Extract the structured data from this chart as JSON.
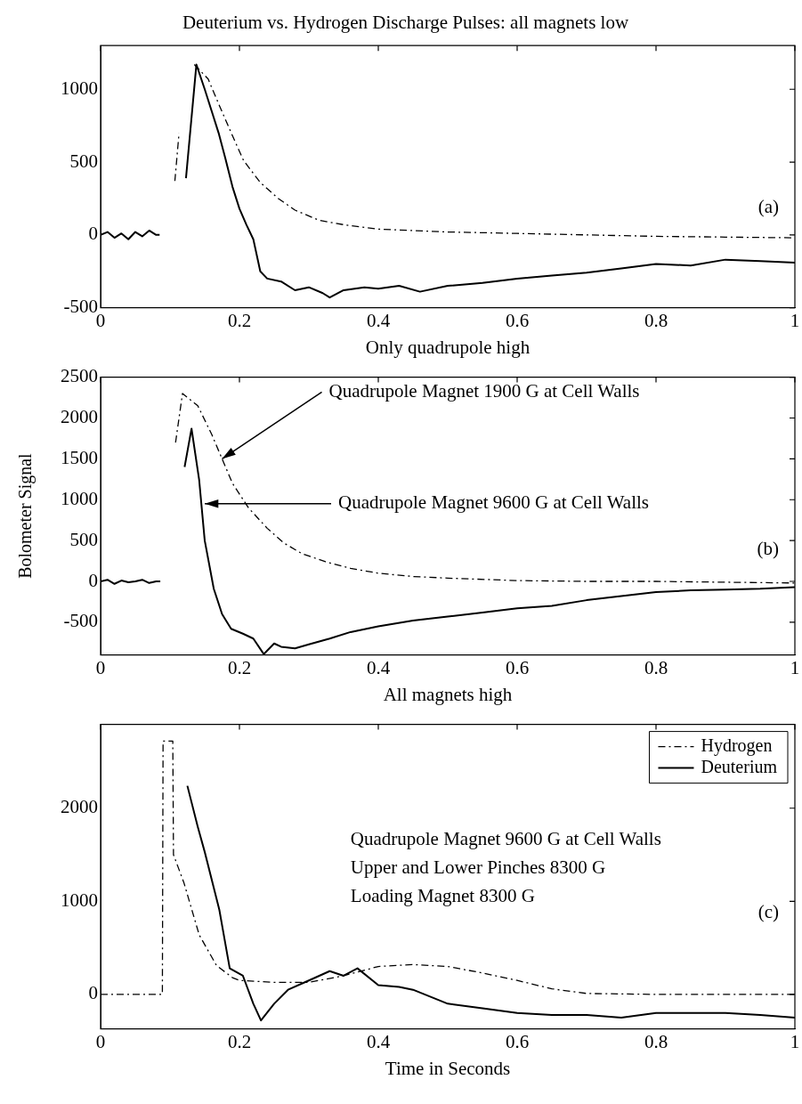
{
  "chart_data": [
    {
      "type": "line",
      "title": "Deuterium vs. Hydrogen Discharge Pulses: all magnets low",
      "xlabel": "Only quadrupole high",
      "xlim": [
        0,
        1
      ],
      "xticks": [
        0,
        0.2,
        0.4,
        0.6,
        0.8,
        1
      ],
      "ylim": [
        -500,
        1300
      ],
      "yticks": [
        -500,
        0,
        500,
        1000
      ],
      "grid": false,
      "marker": "none",
      "annotations": [
        "(a)"
      ],
      "series": [
        {
          "color": "#000000",
          "line_style": "dashed",
          "x": [
            0.107,
            0.113,
            0.118,
            0.135,
            0.155,
            0.17,
            0.19,
            0.206,
            0.23,
            0.256,
            0.28,
            0.315,
            0.35,
            0.4,
            0.45,
            0.5,
            0.6,
            0.7,
            0.8,
            0.9,
            1
          ],
          "values": [
            370,
            700,
            null,
            1170,
            1070,
            900,
            680,
            510,
            360,
            250,
            170,
            100,
            70,
            40,
            30,
            20,
            10,
            0,
            -10,
            -15,
            -20
          ]
        },
        {
          "color": "#000000",
          "line_style": "solid",
          "x": [
            0,
            0.01,
            0.02,
            0.03,
            0.04,
            0.05,
            0.06,
            0.07,
            0.08,
            0.085,
            0.086,
            0.12,
            0.123,
            0.138,
            0.15,
            0.16,
            0.17,
            0.18,
            0.19,
            0.2,
            0.21,
            0.22,
            0.23,
            0.24,
            0.26,
            0.28,
            0.3,
            0.32,
            0.33,
            0.35,
            0.38,
            0.4,
            0.43,
            0.46,
            0.5,
            0.55,
            0.6,
            0.65,
            0.7,
            0.75,
            0.8,
            0.85,
            0.9,
            0.95,
            1
          ],
          "values": [
            0,
            20,
            -20,
            10,
            -30,
            20,
            -10,
            30,
            0,
            0,
            null,
            null,
            390,
            1170,
            1000,
            850,
            700,
            520,
            330,
            180,
            70,
            -30,
            -250,
            -300,
            -320,
            -380,
            -360,
            -400,
            -430,
            -380,
            -360,
            -370,
            -350,
            -390,
            -350,
            -330,
            -300,
            -280,
            -260,
            -230,
            -200,
            -210,
            -170,
            -180,
            -190
          ]
        }
      ]
    },
    {
      "type": "line",
      "xlabel": "All magnets high",
      "ylabel": "Bolometer Signal",
      "xlim": [
        0,
        1
      ],
      "xticks": [
        0,
        0.2,
        0.4,
        0.6,
        0.8,
        1
      ],
      "ylim": [
        -900,
        2500
      ],
      "yticks": [
        -500,
        0,
        500,
        1000,
        1500,
        2000,
        2500
      ],
      "grid": false,
      "marker": "none",
      "annotations": [
        {
          "text": "Quadrupole Magnet 1900 G at Cell Walls",
          "x": 0.175,
          "y": 1500
        },
        {
          "text": "Quadrupole Magnet 9600 G at Cell Walls",
          "x": 0.15,
          "y": 950
        },
        "(b)"
      ],
      "series": [
        {
          "color": "#000000",
          "line_style": "dashed",
          "x": [
            0.108,
            0.118,
            0.14,
            0.16,
            0.175,
            0.19,
            0.213,
            0.24,
            0.264,
            0.29,
            0.324,
            0.36,
            0.4,
            0.45,
            0.5,
            0.6,
            0.7,
            0.8,
            0.9,
            1
          ],
          "values": [
            1700,
            2300,
            2150,
            1800,
            1500,
            1200,
            900,
            650,
            470,
            340,
            240,
            160,
            100,
            60,
            40,
            10,
            0,
            0,
            -10,
            -20
          ]
        },
        {
          "color": "#000000",
          "line_style": "solid",
          "x": [
            0,
            0.01,
            0.02,
            0.03,
            0.04,
            0.05,
            0.06,
            0.07,
            0.08,
            0.086,
            0.087,
            0.12,
            0.121,
            0.131,
            0.142,
            0.15,
            0.163,
            0.175,
            0.188,
            0.205,
            0.22,
            0.235,
            0.25,
            0.26,
            0.28,
            0.3,
            0.33,
            0.36,
            0.4,
            0.45,
            0.5,
            0.55,
            0.6,
            0.65,
            0.7,
            0.75,
            0.8,
            0.85,
            0.9,
            0.95,
            1
          ],
          "values": [
            0,
            20,
            -30,
            10,
            -10,
            0,
            20,
            -20,
            0,
            0,
            null,
            null,
            1400,
            1870,
            1240,
            500,
            -90,
            -400,
            -580,
            -640,
            -700,
            -890,
            -760,
            -800,
            -820,
            -770,
            -700,
            -620,
            -550,
            -480,
            -430,
            -380,
            -330,
            -300,
            -230,
            -180,
            -130,
            -110,
            -100,
            -90,
            -70
          ]
        }
      ]
    },
    {
      "type": "line",
      "xlabel": "Time in Seconds",
      "xlim": [
        0,
        1
      ],
      "xticks": [
        0,
        0.2,
        0.4,
        0.6,
        0.8,
        1
      ],
      "ylim": [
        -370,
        2900
      ],
      "yticks": [
        0,
        1000,
        2000
      ],
      "grid": false,
      "marker": "none",
      "legend": "top right",
      "annotations": [
        "Quadrupole Magnet 9600 G at Cell Walls",
        "Upper and Lower Pinches 8300 G",
        "Loading Magnet 8300 G",
        "(c)"
      ],
      "series": [
        {
          "name": "Hydrogen",
          "color": "#000000",
          "line_style": "dashed",
          "x": [
            0,
            0.089,
            0.09,
            0.104,
            0.105,
            0.12,
            0.142,
            0.167,
            0.19,
            0.2,
            0.25,
            0.3,
            0.35,
            0.4,
            0.45,
            0.5,
            0.55,
            0.6,
            0.65,
            0.7,
            0.8,
            0.9,
            1
          ],
          "values": [
            0,
            0,
            2720,
            2720,
            1500,
            1200,
            640,
            310,
            180,
            150,
            130,
            130,
            200,
            300,
            320,
            300,
            230,
            150,
            60,
            10,
            0,
            0,
            0
          ]
        },
        {
          "name": "Deuterium",
          "color": "#000000",
          "line_style": "solid",
          "x": [
            0.125,
            0.14,
            0.15,
            0.171,
            0.186,
            0.205,
            0.22,
            0.231,
            0.25,
            0.27,
            0.3,
            0.33,
            0.35,
            0.37,
            0.4,
            0.43,
            0.45,
            0.5,
            0.55,
            0.6,
            0.65,
            0.7,
            0.75,
            0.8,
            0.85,
            0.9,
            0.95,
            1
          ],
          "values": [
            2240,
            1800,
            1530,
            910,
            280,
            200,
            -100,
            -280,
            -100,
            50,
            150,
            250,
            200,
            280,
            100,
            80,
            50,
            -100,
            -150,
            -200,
            -220,
            -220,
            -250,
            -200,
            -200,
            -200,
            -220,
            -250
          ]
        }
      ]
    }
  ]
}
